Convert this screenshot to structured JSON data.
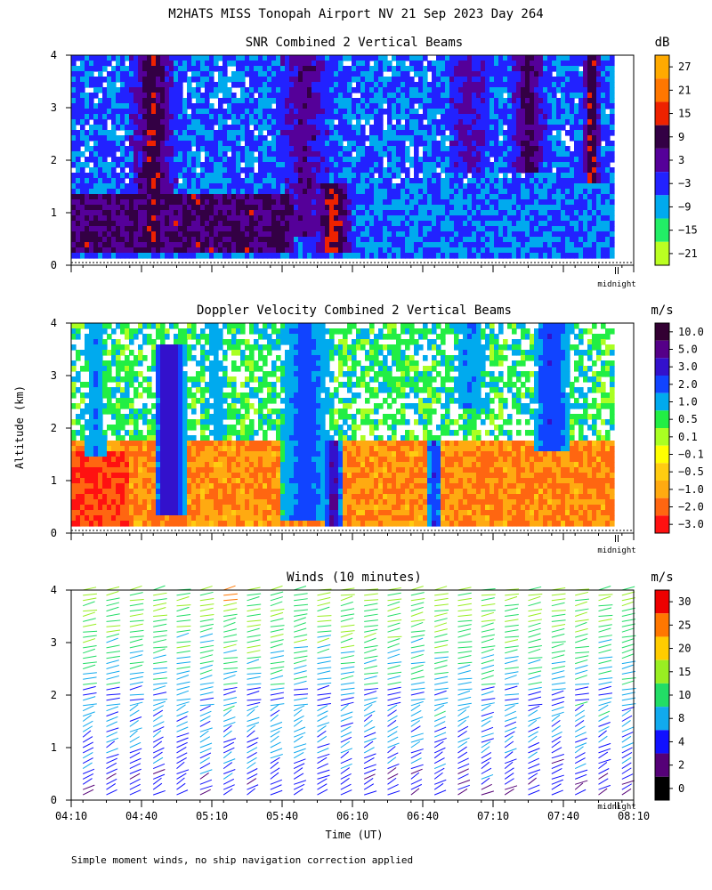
{
  "title": "M2HATS MISS Tonopah Airport NV  21 Sep 2023 Day 264",
  "y_axis_label": "Altitude (km)",
  "x_axis_label": "Time (UT)",
  "footnote": "Simple moment winds, no ship navigation correction applied",
  "midnight_label": "midnight",
  "chart_data": [
    {
      "type": "heatmap",
      "title": "SNR Combined 2 Vertical Beams",
      "ylim": [
        0,
        4
      ],
      "yticks": [
        "0",
        "1",
        "2",
        "3",
        "4"
      ],
      "xticks": [],
      "colorbar": {
        "unit": "dB",
        "labels": [
          "27",
          "21",
          "15",
          "9",
          "3",
          "−3",
          "−9",
          "−15",
          "−21"
        ],
        "colors": [
          "#ffaa00",
          "#ff7700",
          "#ee2200",
          "#330044",
          "#550099",
          "#2222ff",
          "#00aaee",
          "#22ee66",
          "#bbff22"
        ]
      },
      "columns": [
        {
          "x": "04:15",
          "structure": "low layer 0.1–1.5 km high SNR (3 to 9 dB), scattered returns above"
        },
        {
          "x": "04:45",
          "structure": "vertical plume 0.5–4 km high SNR (9 to 27 dB)"
        },
        {
          "x": "05:25",
          "structure": "low layer 0.1–1.5 km 3 to 9 dB"
        },
        {
          "x": "05:40",
          "structure": "tall plume 0–4 km 3 to 21 dB"
        },
        {
          "x": "06:20",
          "structure": "weak returns −15 to −3 dB"
        },
        {
          "x": "07:20",
          "structure": "plume 1.8–4 km 3 to 27 dB"
        }
      ]
    },
    {
      "type": "heatmap",
      "title": "Doppler Velocity Combined 2 Vertical Beams",
      "ylim": [
        0,
        4
      ],
      "yticks": [
        "0",
        "1",
        "2",
        "3",
        "4"
      ],
      "xticks": [],
      "colorbar": {
        "unit": "m/s",
        "labels": [
          "10.0",
          "5.0",
          "3.0",
          "2.0",
          "1.0",
          "0.5",
          "0.1",
          "−0.1",
          "−0.5",
          "−1.0",
          "−2.0",
          "−3.0"
        ],
        "colors": [
          "#330033",
          "#550088",
          "#3311cc",
          "#1144ff",
          "#00aaee",
          "#22ee44",
          "#aaff22",
          "#ffff00",
          "#ffcc11",
          "#ffaa11",
          "#ff6611",
          "#ff1111"
        ]
      },
      "columns": [
        {
          "x": "04:15",
          "structure": "low layer 0.1–1.8 km −2.0 to −0.5 m/s"
        },
        {
          "x": "04:50",
          "structure": "vertical band 0.5–4 km 2.0 to 10.0 m/s"
        },
        {
          "x": "05:40",
          "structure": "vertical band 0–4 km 1.0 to 5.0 m/s"
        },
        {
          "x": "06:20",
          "structure": "layer 0.1–1.8 km −1.0 to −0.1 m/s"
        },
        {
          "x": "07:20",
          "structure": "vertical band 2.5–4 km 1.0 to 2.0 m/s"
        }
      ]
    },
    {
      "type": "scatter",
      "title": "Winds (10 minutes)",
      "ylim": [
        0,
        4
      ],
      "yticks": [
        "0",
        "1",
        "2",
        "3",
        "4"
      ],
      "xticks": [
        "04:10",
        "04:40",
        "05:10",
        "05:40",
        "06:10",
        "06:40",
        "07:10",
        "07:40",
        "08:10"
      ],
      "colorbar": {
        "unit": "m/s",
        "labels": [
          "30",
          "25",
          "20",
          "15",
          "10",
          "8",
          "4",
          "2",
          "0"
        ],
        "colors": [
          "#ee0000",
          "#ff7700",
          "#ffcc00",
          "#99ee22",
          "#22dd66",
          "#11aaee",
          "#1111ff",
          "#550077",
          "#000000"
        ]
      },
      "wind_columns": [
        "04:15",
        "04:25",
        "04:35",
        "04:45",
        "04:55",
        "05:05",
        "05:15",
        "05:25",
        "05:35",
        "05:45",
        "05:55",
        "06:05",
        "06:15",
        "06:25",
        "06:35",
        "06:45",
        "06:55",
        "07:05",
        "07:15",
        "07:25",
        "07:35",
        "07:45",
        "07:55",
        "08:05"
      ]
    }
  ]
}
